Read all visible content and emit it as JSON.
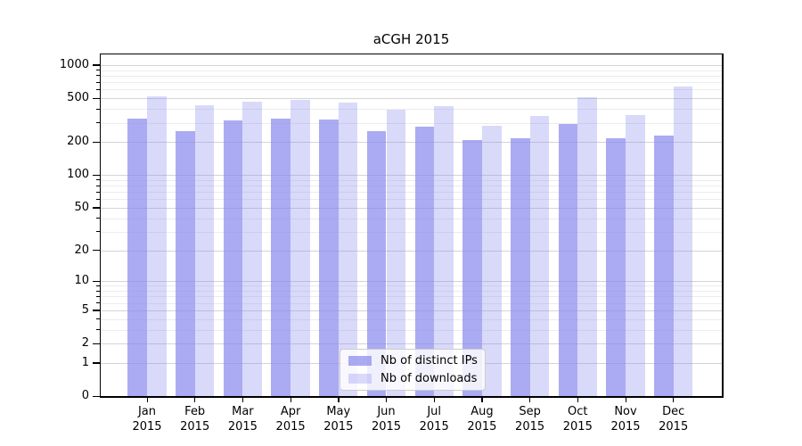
{
  "chart_data": {
    "type": "bar",
    "title": "aCGH 2015",
    "categories": [
      "Jan",
      "Feb",
      "Mar",
      "Apr",
      "May",
      "Jun",
      "Jul",
      "Aug",
      "Sep",
      "Oct",
      "Nov",
      "Dec"
    ],
    "year": "2015",
    "series": [
      {
        "name": "Nb of distinct IPs",
        "color": "#aaaaf3",
        "fill_alpha": 0.71,
        "values": [
          325,
          251,
          312,
          328,
          320,
          253,
          275,
          207,
          218,
          292,
          215,
          228
        ]
      },
      {
        "name": "Nb of downloads",
        "color": "#d9d9fa",
        "fill_alpha": 0.32,
        "values": [
          524,
          435,
          466,
          487,
          460,
          396,
          425,
          279,
          347,
          512,
          353,
          644
        ]
      }
    ],
    "y_axis": {
      "scale": "log1p",
      "major_ticks": [
        0,
        1,
        2,
        5,
        10,
        20,
        50,
        100,
        200,
        500,
        1000
      ],
      "minor_ticks": [
        3,
        4,
        6,
        7,
        8,
        9,
        30,
        40,
        60,
        70,
        80,
        90,
        300,
        400,
        600,
        700,
        800,
        900
      ],
      "ylim_top": 1230
    },
    "legend_position": "inside-bottom-center",
    "grid": "on",
    "colors": {
      "bar_base": "#8888ee",
      "grid_major": "#d4d4d4",
      "grid_minor": "#ececec",
      "axis": "#000000",
      "background": "#ffffff",
      "legend_border": "#cccccc"
    }
  }
}
